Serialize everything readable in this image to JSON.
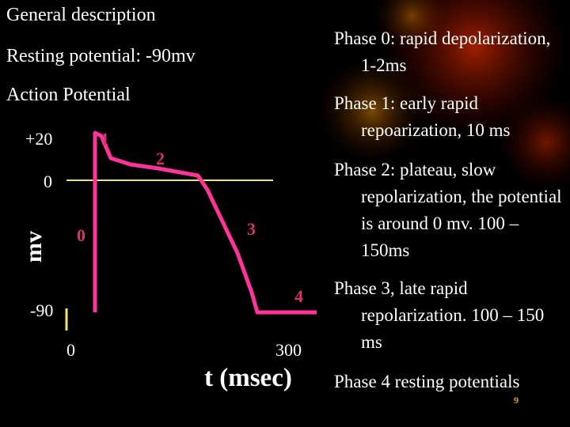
{
  "header": {
    "title": "General description"
  },
  "left": {
    "lines": [
      "Resting potential: -90mv",
      "Action Potential"
    ]
  },
  "diagram": {
    "y_labels": [
      "+20",
      "0",
      "-90"
    ],
    "x_labels": [
      "0",
      "300"
    ],
    "y_axis_title": "mv",
    "x_axis_title": "t (msec)",
    "phase_labels": [
      "1",
      "2",
      "0",
      "3",
      "4"
    ]
  },
  "phases": [
    "Phase 0: rapid depolarization, 1-2ms",
    "Phase 1: early rapid repoarization, 10 ms",
    "Phase 2: plateau, slow repolarization, the potential is around 0 mv. 100 – 150ms",
    "Phase 3, late rapid repolarization. 100 – 150 ms",
    "Phase 4 resting potentials"
  ],
  "page_number": "9"
}
